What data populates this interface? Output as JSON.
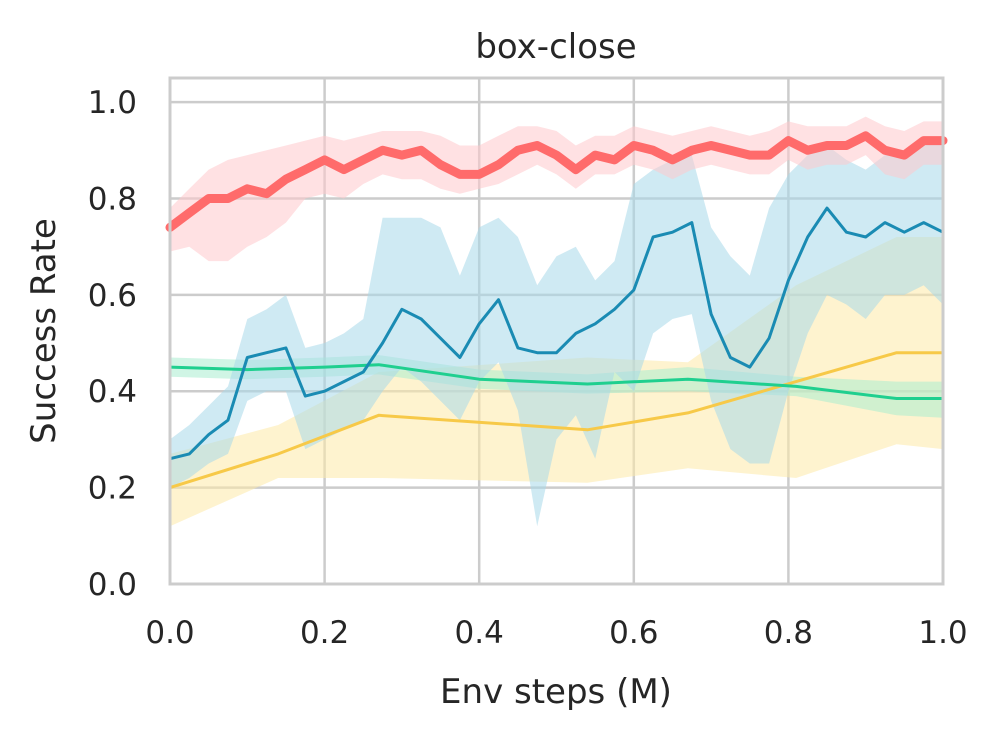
{
  "chart_data": {
    "type": "line",
    "title": "box-close",
    "xlabel": "Env steps (M)",
    "ylabel": "Success Rate",
    "xlim": [
      0.0,
      1.0
    ],
    "ylim": [
      0.0,
      1.05
    ],
    "xticks": [
      "0.0",
      "0.2",
      "0.4",
      "0.6",
      "0.8",
      "1.0"
    ],
    "yticks": [
      "0.0",
      "0.2",
      "0.4",
      "0.6",
      "0.8",
      "1.0"
    ],
    "xtick_values": [
      0.0,
      0.2,
      0.4,
      0.6,
      0.8,
      1.0
    ],
    "ytick_values": [
      0.0,
      0.2,
      0.4,
      0.6,
      0.8,
      1.0
    ],
    "grid": true,
    "legend": "none",
    "series": [
      {
        "name": "yellow",
        "color": "#f7c948",
        "band_color": "#fde9a7",
        "line_style": "thin",
        "x": [
          0.0,
          0.14,
          0.27,
          0.54,
          0.67,
          0.81,
          0.94,
          1.0
        ],
        "y": [
          0.2,
          0.27,
          0.35,
          0.32,
          0.355,
          0.42,
          0.48,
          0.48
        ],
        "lower": [
          0.12,
          0.22,
          0.22,
          0.21,
          0.24,
          0.22,
          0.29,
          0.28
        ],
        "upper": [
          0.27,
          0.33,
          0.44,
          0.47,
          0.46,
          0.62,
          0.72,
          0.72
        ]
      },
      {
        "name": "green",
        "color": "#1fcf8f",
        "band_color": "#a9ecd0",
        "line_style": "thin",
        "x": [
          0.0,
          0.1,
          0.2,
          0.27,
          0.4,
          0.54,
          0.67,
          0.81,
          0.94,
          1.0
        ],
        "y": [
          0.45,
          0.445,
          0.45,
          0.455,
          0.425,
          0.415,
          0.425,
          0.41,
          0.385,
          0.385
        ],
        "lower": [
          0.43,
          0.425,
          0.43,
          0.435,
          0.405,
          0.395,
          0.4,
          0.39,
          0.35,
          0.345
        ],
        "upper": [
          0.47,
          0.465,
          0.47,
          0.475,
          0.445,
          0.435,
          0.45,
          0.43,
          0.42,
          0.42
        ]
      },
      {
        "name": "blue",
        "color": "#1a8bb3",
        "band_color": "#a8d8ea",
        "line_style": "thin",
        "x": [
          0.0,
          0.025,
          0.05,
          0.075,
          0.1,
          0.125,
          0.15,
          0.175,
          0.2,
          0.225,
          0.25,
          0.275,
          0.3,
          0.325,
          0.35,
          0.375,
          0.4,
          0.425,
          0.45,
          0.475,
          0.5,
          0.525,
          0.55,
          0.575,
          0.6,
          0.625,
          0.65,
          0.675,
          0.7,
          0.725,
          0.75,
          0.775,
          0.8,
          0.825,
          0.85,
          0.875,
          0.9,
          0.925,
          0.95,
          0.975,
          1.0
        ],
        "y": [
          0.26,
          0.27,
          0.31,
          0.34,
          0.47,
          0.48,
          0.49,
          0.39,
          0.4,
          0.42,
          0.44,
          0.5,
          0.57,
          0.55,
          0.51,
          0.47,
          0.54,
          0.59,
          0.49,
          0.48,
          0.48,
          0.52,
          0.54,
          0.57,
          0.61,
          0.72,
          0.73,
          0.75,
          0.56,
          0.47,
          0.45,
          0.51,
          0.63,
          0.72,
          0.78,
          0.73,
          0.72,
          0.75,
          0.73,
          0.75,
          0.73
        ],
        "lower": [
          0.2,
          0.22,
          0.25,
          0.27,
          0.38,
          0.4,
          0.4,
          0.28,
          0.3,
          0.32,
          0.34,
          0.4,
          0.45,
          0.42,
          0.38,
          0.34,
          0.42,
          0.46,
          0.36,
          0.12,
          0.3,
          0.35,
          0.26,
          0.44,
          0.4,
          0.52,
          0.55,
          0.56,
          0.38,
          0.28,
          0.25,
          0.25,
          0.4,
          0.52,
          0.6,
          0.58,
          0.55,
          0.6,
          0.6,
          0.62,
          0.58
        ],
        "upper": [
          0.3,
          0.33,
          0.37,
          0.41,
          0.55,
          0.57,
          0.6,
          0.49,
          0.5,
          0.52,
          0.55,
          0.76,
          0.76,
          0.76,
          0.74,
          0.64,
          0.74,
          0.76,
          0.72,
          0.62,
          0.68,
          0.7,
          0.63,
          0.67,
          0.83,
          0.86,
          0.88,
          0.89,
          0.74,
          0.68,
          0.64,
          0.78,
          0.85,
          0.89,
          0.91,
          0.88,
          0.86,
          0.89,
          0.89,
          0.91,
          0.93
        ]
      },
      {
        "name": "red",
        "color": "#ff6b6b",
        "band_color": "#ffc9cc",
        "line_style": "thick",
        "x": [
          0.0,
          0.025,
          0.05,
          0.075,
          0.1,
          0.125,
          0.15,
          0.175,
          0.2,
          0.225,
          0.25,
          0.275,
          0.3,
          0.325,
          0.35,
          0.375,
          0.4,
          0.425,
          0.45,
          0.475,
          0.5,
          0.525,
          0.55,
          0.575,
          0.6,
          0.625,
          0.65,
          0.675,
          0.7,
          0.725,
          0.75,
          0.775,
          0.8,
          0.825,
          0.85,
          0.875,
          0.9,
          0.925,
          0.95,
          0.975,
          1.0
        ],
        "y": [
          0.74,
          0.77,
          0.8,
          0.8,
          0.82,
          0.81,
          0.84,
          0.86,
          0.88,
          0.86,
          0.88,
          0.9,
          0.89,
          0.9,
          0.87,
          0.85,
          0.85,
          0.87,
          0.9,
          0.91,
          0.89,
          0.86,
          0.89,
          0.88,
          0.91,
          0.9,
          0.88,
          0.9,
          0.91,
          0.9,
          0.89,
          0.89,
          0.92,
          0.9,
          0.91,
          0.91,
          0.93,
          0.9,
          0.89,
          0.92,
          0.92
        ],
        "lower": [
          0.69,
          0.7,
          0.67,
          0.67,
          0.7,
          0.72,
          0.75,
          0.8,
          0.81,
          0.8,
          0.83,
          0.85,
          0.84,
          0.84,
          0.82,
          0.81,
          0.82,
          0.83,
          0.85,
          0.87,
          0.85,
          0.82,
          0.85,
          0.85,
          0.87,
          0.86,
          0.84,
          0.86,
          0.87,
          0.86,
          0.85,
          0.85,
          0.88,
          0.86,
          0.87,
          0.87,
          0.89,
          0.85,
          0.84,
          0.87,
          0.87
        ],
        "upper": [
          0.78,
          0.82,
          0.86,
          0.88,
          0.89,
          0.9,
          0.91,
          0.92,
          0.93,
          0.92,
          0.93,
          0.94,
          0.94,
          0.94,
          0.93,
          0.91,
          0.91,
          0.93,
          0.95,
          0.95,
          0.94,
          0.91,
          0.93,
          0.93,
          0.95,
          0.94,
          0.93,
          0.94,
          0.95,
          0.94,
          0.93,
          0.94,
          0.96,
          0.95,
          0.95,
          0.95,
          0.97,
          0.95,
          0.94,
          0.96,
          0.96
        ]
      }
    ]
  }
}
